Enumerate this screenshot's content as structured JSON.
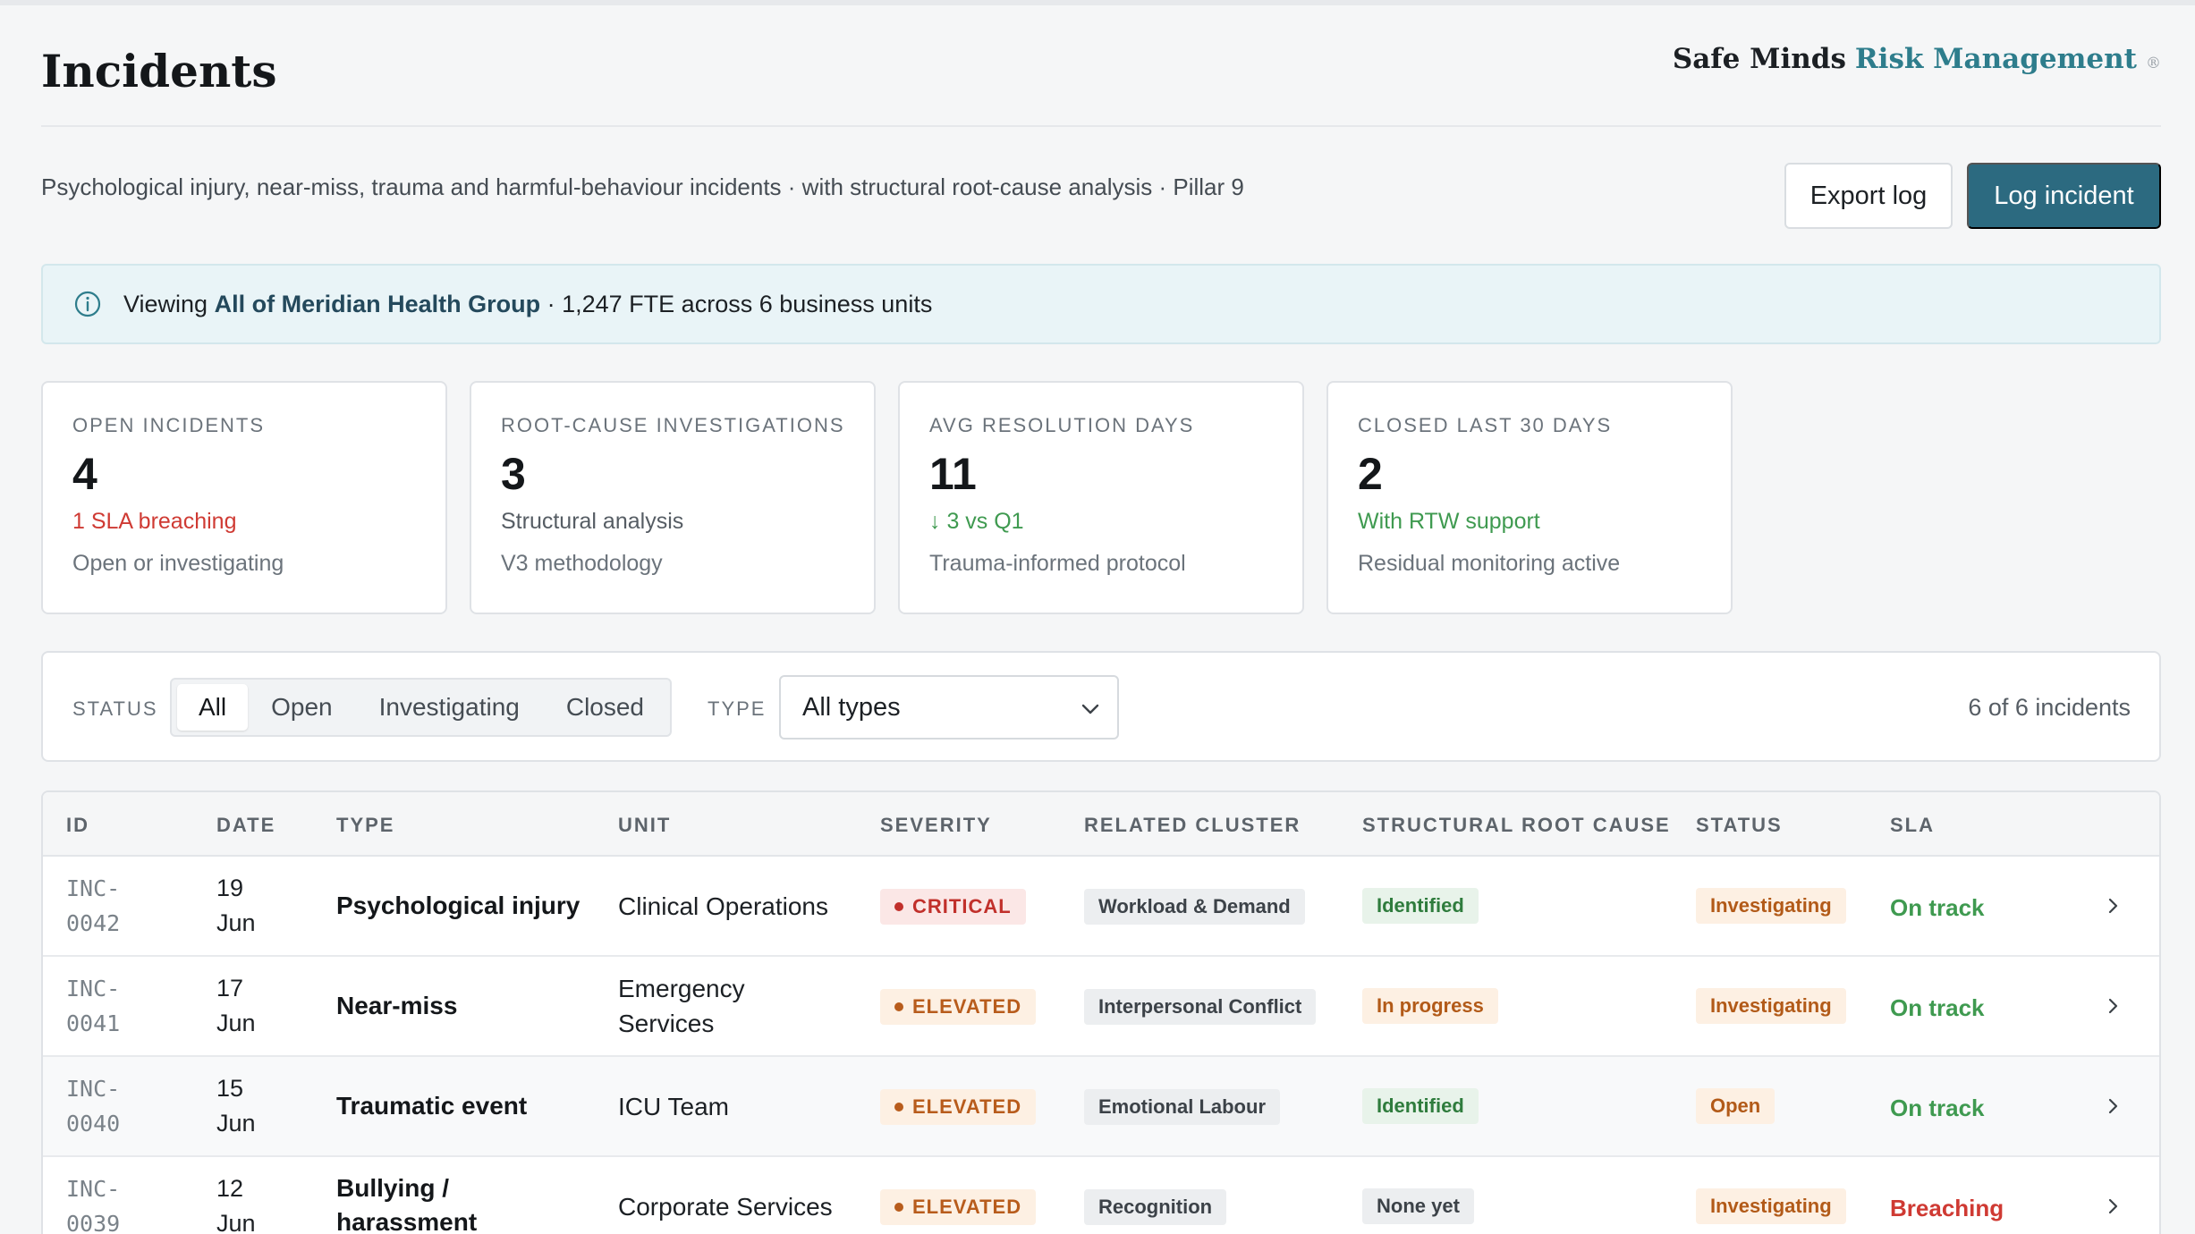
{
  "header": {
    "title": "Incidents",
    "brand": {
      "part1": "Safe Minds",
      "part2": "Risk Management",
      "mark": "®"
    },
    "subtitle": "Psychological injury, near-miss, trauma and harmful-behaviour incidents · with structural root-cause analysis · Pillar 9",
    "buttons": {
      "export": "Export log",
      "log": "Log incident"
    }
  },
  "banner": {
    "prefix": "Viewing",
    "org": "All of Meridian Health Group",
    "suffix": "· 1,247 FTE across 6 business units"
  },
  "kpis": [
    {
      "label": "OPEN INCIDENTS",
      "value": "4",
      "line1": "1 SLA breaching",
      "line2": "Open or investigating"
    },
    {
      "label": "ROOT-CAUSE INVESTIGATIONS",
      "value": "3",
      "line1": "Structural analysis",
      "line2": "V3 methodology"
    },
    {
      "label": "AVG RESOLUTION DAYS",
      "value": "11",
      "line1": "↓ 3 vs Q1",
      "line2": "Trauma-informed protocol"
    },
    {
      "label": "CLOSED LAST 30 DAYS",
      "value": "2",
      "line1": "With RTW support",
      "line2": "Residual monitoring active"
    }
  ],
  "filters": {
    "status_label": "STATUS",
    "status_options": [
      "All",
      "Open",
      "Investigating",
      "Closed"
    ],
    "status_selected": "All",
    "type_label": "TYPE",
    "type_value": "All types",
    "count": "6 of 6 incidents"
  },
  "table": {
    "columns": [
      "ID",
      "DATE",
      "TYPE",
      "UNIT",
      "SEVERITY",
      "RELATED CLUSTER",
      "STRUCTURAL ROOT CAUSE",
      "STATUS",
      "SLA"
    ],
    "rows": [
      {
        "id_a": "INC-",
        "id_b": "0042",
        "date_a": "19",
        "date_b": "Jun",
        "type": "Psychological injury",
        "unit": "Clinical Operations",
        "severity": "CRITICAL",
        "cluster": "Workload & Demand",
        "root_cause": "Identified",
        "status": "Investigating",
        "sla": "On track"
      },
      {
        "id_a": "INC-",
        "id_b": "0041",
        "date_a": "17",
        "date_b": "Jun",
        "type": "Near-miss",
        "unit": "Emergency Services",
        "severity": "ELEVATED",
        "cluster": "Interpersonal Conflict",
        "root_cause": "In progress",
        "status": "Investigating",
        "sla": "On track"
      },
      {
        "id_a": "INC-",
        "id_b": "0040",
        "date_a": "15",
        "date_b": "Jun",
        "type": "Traumatic event",
        "unit": "ICU Team",
        "severity": "ELEVATED",
        "cluster": "Emotional Labour",
        "root_cause": "Identified",
        "status": "Open",
        "sla": "On track"
      },
      {
        "id_a": "INC-",
        "id_b": "0039",
        "date_a": "12",
        "date_b": "Jun",
        "type": "Bullying / harassment",
        "unit": "Corporate Services",
        "severity": "ELEVATED",
        "cluster": "Recognition",
        "root_cause": "None yet",
        "status": "Investigating",
        "sla": "Breaching"
      }
    ]
  },
  "colors": {
    "accent": "#2c6a80",
    "brand_teal": "#2e7d8c",
    "danger": "#cf3a33",
    "success": "#3f9a50",
    "warning": "#b25a18"
  }
}
